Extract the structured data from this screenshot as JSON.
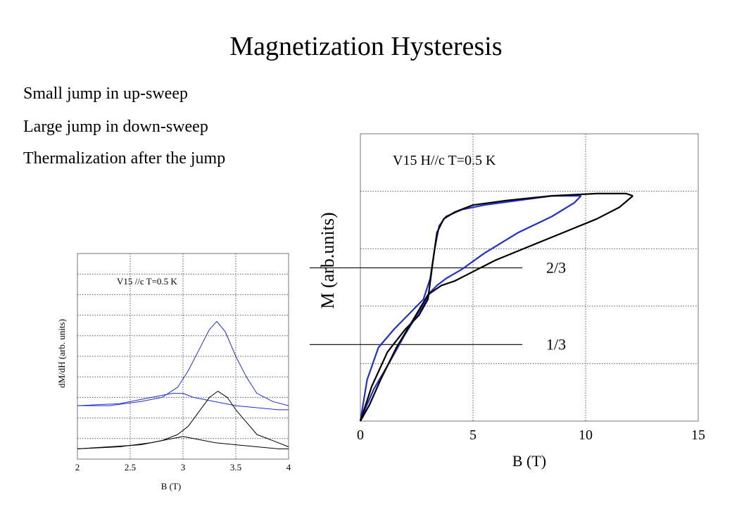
{
  "slide": {
    "title": "Magnetization Hysteresis",
    "bullets": [
      "Small jump in up-sweep",
      "Large jump in down-sweep",
      "Thermalization after the jump"
    ]
  },
  "chart_data": [
    {
      "type": "line",
      "title": "V15 //c T=0.5 K",
      "xlabel": "B (T)",
      "ylabel": "dM/dH (arb. units)",
      "xlim": [
        2,
        4
      ],
      "ylim": [
        0,
        10
      ],
      "xticks": [
        "2",
        "2.5",
        "3",
        "3.5",
        "4"
      ],
      "grid": true,
      "series": [
        {
          "color": "#1f2fd0",
          "x": [
            2.0,
            2.3,
            2.6,
            2.8,
            2.95,
            3.05,
            3.15,
            3.25,
            3.32,
            3.4,
            3.5,
            3.6,
            3.7,
            3.85,
            4.0
          ],
          "y": [
            2.6,
            2.6,
            2.8,
            3.0,
            3.5,
            4.3,
            5.3,
            6.3,
            6.7,
            6.2,
            5.0,
            4.0,
            3.2,
            2.8,
            2.6
          ]
        },
        {
          "color": "#1f2fd0",
          "x": [
            2.0,
            2.4,
            2.7,
            2.9,
            3.0,
            3.1,
            3.3,
            3.5,
            3.7,
            3.9,
            4.0
          ],
          "y": [
            2.6,
            2.7,
            3.0,
            3.2,
            3.2,
            3.0,
            2.8,
            2.6,
            2.5,
            2.4,
            2.4
          ]
        },
        {
          "color": "#000000",
          "x": [
            2.0,
            2.3,
            2.6,
            2.8,
            2.95,
            3.05,
            3.15,
            3.25,
            3.33,
            3.42,
            3.5,
            3.6,
            3.7,
            3.85,
            4.0
          ],
          "y": [
            0.5,
            0.6,
            0.7,
            0.9,
            1.2,
            1.6,
            2.3,
            3.0,
            3.3,
            3.0,
            2.4,
            1.8,
            1.2,
            0.9,
            0.6
          ]
        },
        {
          "color": "#000000",
          "x": [
            2.0,
            2.4,
            2.7,
            2.9,
            3.0,
            3.1,
            3.3,
            3.5,
            3.7,
            3.9,
            4.0
          ],
          "y": [
            0.5,
            0.6,
            0.8,
            1.0,
            1.1,
            1.0,
            0.8,
            0.7,
            0.6,
            0.5,
            0.5
          ]
        }
      ]
    },
    {
      "type": "line",
      "title": "V15 H//c T=0.5 K",
      "xlabel": "B (T)",
      "ylabel": "M (arb.units)",
      "xlim": [
        0,
        15
      ],
      "ylim": [
        0,
        1.25
      ],
      "xticks": [
        "0",
        "5",
        "10",
        "15"
      ],
      "grid": true,
      "annotations": [
        {
          "text": "2/3",
          "y": 0.667
        },
        {
          "text": "1/3",
          "y": 0.333
        }
      ],
      "series": [
        {
          "color": "#1f2fd0",
          "x": [
            0.0,
            0.3,
            0.8,
            1.5,
            2.2,
            2.8,
            3.1,
            3.3,
            3.5,
            3.8,
            4.5,
            5.5,
            7.0,
            8.5,
            9.8
          ],
          "y": [
            0.0,
            0.18,
            0.32,
            0.4,
            0.47,
            0.53,
            0.62,
            0.75,
            0.85,
            0.89,
            0.92,
            0.94,
            0.96,
            0.98,
            0.98
          ]
        },
        {
          "color": "#1f2fd0",
          "x": [
            9.8,
            9.5,
            8.5,
            7.0,
            5.5,
            4.5,
            3.8,
            3.4,
            3.1,
            2.7,
            2.0,
            1.2,
            0.6,
            0.2,
            0.0
          ],
          "y": [
            0.98,
            0.95,
            0.89,
            0.82,
            0.73,
            0.66,
            0.62,
            0.59,
            0.56,
            0.49,
            0.38,
            0.24,
            0.14,
            0.05,
            0.0
          ]
        },
        {
          "color": "#000000",
          "x": [
            0.0,
            0.5,
            1.2,
            2.0,
            2.6,
            3.0,
            3.2,
            3.4,
            3.7,
            4.2,
            5.0,
            6.5,
            8.5,
            10.5,
            11.8,
            12.1
          ],
          "y": [
            0.0,
            0.15,
            0.3,
            0.4,
            0.46,
            0.53,
            0.68,
            0.82,
            0.88,
            0.91,
            0.94,
            0.96,
            0.98,
            0.99,
            0.99,
            0.98
          ]
        },
        {
          "color": "#000000",
          "x": [
            12.1,
            11.5,
            10.5,
            9.0,
            7.5,
            6.0,
            5.0,
            4.2,
            3.6,
            3.0,
            2.4,
            1.6,
            0.9,
            0.4,
            0.0
          ],
          "y": [
            0.98,
            0.93,
            0.88,
            0.82,
            0.76,
            0.7,
            0.65,
            0.61,
            0.59,
            0.55,
            0.45,
            0.32,
            0.18,
            0.07,
            0.0
          ]
        }
      ]
    }
  ]
}
